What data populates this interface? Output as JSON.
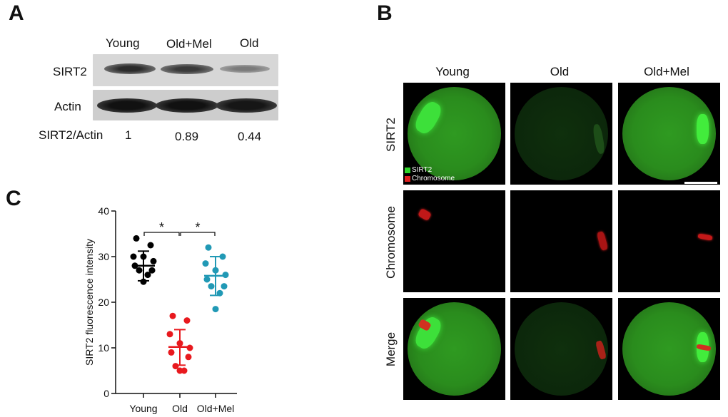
{
  "panels": {
    "a": "A",
    "b": "B",
    "c": "C"
  },
  "blot": {
    "lanes": [
      "Young",
      "Old+Mel",
      "Old"
    ],
    "rows": [
      "SIRT2",
      "Actin"
    ],
    "ratio_label": "SIRT2/Actin",
    "ratios": [
      "1",
      "0.89",
      "0.44"
    ]
  },
  "micrographs": {
    "columns": [
      "Young",
      "Old",
      "Old+Mel"
    ],
    "rows": [
      "SIRT2",
      "Chromosome",
      "Merge"
    ],
    "legend": {
      "sirt2": "SIRT2",
      "chromosome": "Chromosome"
    },
    "colors": {
      "sirt2": "#2fd42a",
      "chromosome": "#e02020"
    }
  },
  "chart_data": {
    "type": "scatter",
    "ylabel": "SIRT2 fluorescence intensity",
    "ylim": [
      0,
      40
    ],
    "yticks": [
      "0",
      "10",
      "20",
      "30",
      "40"
    ],
    "categories": [
      "Young",
      "Old",
      "Old+Mel"
    ],
    "colors": [
      "#000000",
      "#e8191e",
      "#2199b5"
    ],
    "groups": [
      {
        "name": "Young",
        "mean": 28.0,
        "sd_upper": 31.2,
        "sd_lower": 24.7,
        "points": [
          34.0,
          32.5,
          30.0,
          30.0,
          29.0,
          28.0,
          27.0,
          27.0,
          26.0,
          24.5
        ]
      },
      {
        "name": "Old",
        "mean": 10.2,
        "sd_upper": 14.0,
        "sd_lower": 6.2,
        "points": [
          17.0,
          16.0,
          13.0,
          11.0,
          10.0,
          9.0,
          8.0,
          6.0,
          5.0,
          5.0
        ]
      },
      {
        "name": "Old+Mel",
        "mean": 25.8,
        "sd_upper": 30.0,
        "sd_lower": 21.5,
        "points": [
          32.0,
          30.0,
          28.5,
          27.0,
          26.0,
          25.0,
          23.5,
          23.5,
          22.0,
          18.5
        ]
      }
    ],
    "significance": [
      "*",
      "*"
    ],
    "grid": false
  }
}
